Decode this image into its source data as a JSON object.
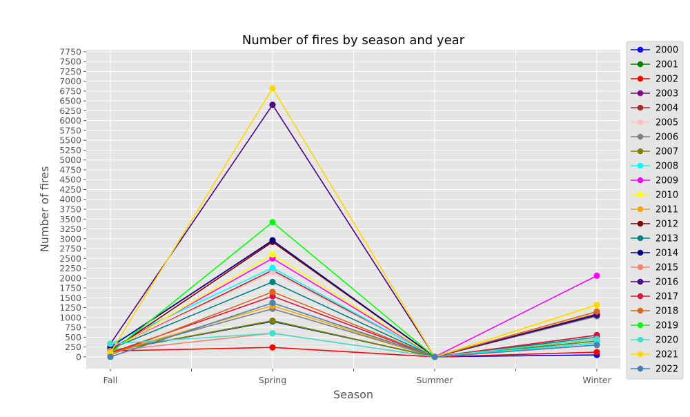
{
  "chart_data": {
    "type": "line",
    "title": "Number of fires by season and year",
    "xlabel": "Season",
    "ylabel": "Number of fires",
    "categories": [
      "Fall",
      "Spring",
      "Summer",
      "Winter"
    ],
    "ylim": [
      -300,
      7800
    ],
    "yticks": [
      0,
      250,
      500,
      750,
      1000,
      1250,
      1500,
      1750,
      2000,
      2250,
      2500,
      2750,
      3000,
      3250,
      3500,
      3750,
      4000,
      4250,
      4500,
      4750,
      5000,
      5250,
      5500,
      5750,
      6000,
      6250,
      6500,
      6750,
      7000,
      7250,
      7500,
      7750
    ],
    "ytick_labels": [
      "0",
      "250",
      "500",
      "750",
      "1000",
      "1250",
      "1500",
      "1750",
      "2000",
      "2250",
      "2500",
      "2750",
      "3000",
      "3250",
      "3500",
      "3750",
      "4000",
      "4250",
      "4500",
      "4750",
      "5000",
      "5250",
      "5500",
      "5750",
      "6000",
      "6250",
      "6500",
      "6750",
      "7000",
      "7250",
      "7500",
      "7750"
    ],
    "grid": true,
    "legend_position": "outside-right",
    "background_color": "#e5e5e5",
    "grid_color": "#ffffff",
    "series": [
      {
        "name": "2000",
        "color": "#0000ff",
        "values": [
          150,
          900,
          0,
          50
        ]
      },
      {
        "name": "2001",
        "color": "#008000",
        "values": [
          150,
          910,
          0,
          400
        ]
      },
      {
        "name": "2002",
        "color": "#ff0000",
        "values": [
          150,
          240,
          0,
          120
        ]
      },
      {
        "name": "2003",
        "color": "#800080",
        "values": [
          250,
          2950,
          0,
          1050
        ]
      },
      {
        "name": "2004",
        "color": "#a52a2a",
        "values": [
          200,
          2200,
          0,
          350
        ]
      },
      {
        "name": "2005",
        "color": "#ffc0cb",
        "values": [
          200,
          2150,
          0,
          300
        ]
      },
      {
        "name": "2006",
        "color": "#808080",
        "values": [
          100,
          1220,
          0,
          1030
        ]
      },
      {
        "name": "2007",
        "color": "#808000",
        "values": [
          150,
          920,
          0,
          400
        ]
      },
      {
        "name": "2008",
        "color": "#00ffff",
        "values": [
          330,
          2260,
          0,
          350
        ]
      },
      {
        "name": "2009",
        "color": "#ff00ff",
        "values": [
          200,
          2500,
          0,
          2060
        ]
      },
      {
        "name": "2010",
        "color": "#ffff00",
        "values": [
          150,
          2600,
          0,
          1310
        ]
      },
      {
        "name": "2011",
        "color": "#ffa500",
        "values": [
          100,
          1300,
          0,
          1100
        ]
      },
      {
        "name": "2012",
        "color": "#800000",
        "values": [
          150,
          2920,
          0,
          550
        ]
      },
      {
        "name": "2013",
        "color": "#008080",
        "values": [
          200,
          1900,
          0,
          500
        ]
      },
      {
        "name": "2014",
        "color": "#000080",
        "values": [
          250,
          2960,
          0,
          1060
        ]
      },
      {
        "name": "2015",
        "color": "#fa8072",
        "values": [
          150,
          600,
          0,
          300
        ]
      },
      {
        "name": "2016",
        "color": "#4b0082",
        "values": [
          330,
          6400,
          0,
          1080
        ]
      },
      {
        "name": "2017",
        "color": "#dc143c",
        "values": [
          100,
          1540,
          0,
          550
        ]
      },
      {
        "name": "2018",
        "color": "#d2691e",
        "values": [
          50,
          1650,
          0,
          1150
        ]
      },
      {
        "name": "2019",
        "color": "#00ff00",
        "values": [
          100,
          3420,
          0,
          450
        ]
      },
      {
        "name": "2020",
        "color": "#40e0d0",
        "values": [
          330,
          600,
          0,
          450
        ]
      },
      {
        "name": "2021",
        "color": "#ffd700",
        "values": [
          100,
          6820,
          0,
          1320
        ]
      },
      {
        "name": "2022",
        "color": "#4682b4",
        "values": [
          0,
          1370,
          0,
          300
        ]
      }
    ]
  }
}
